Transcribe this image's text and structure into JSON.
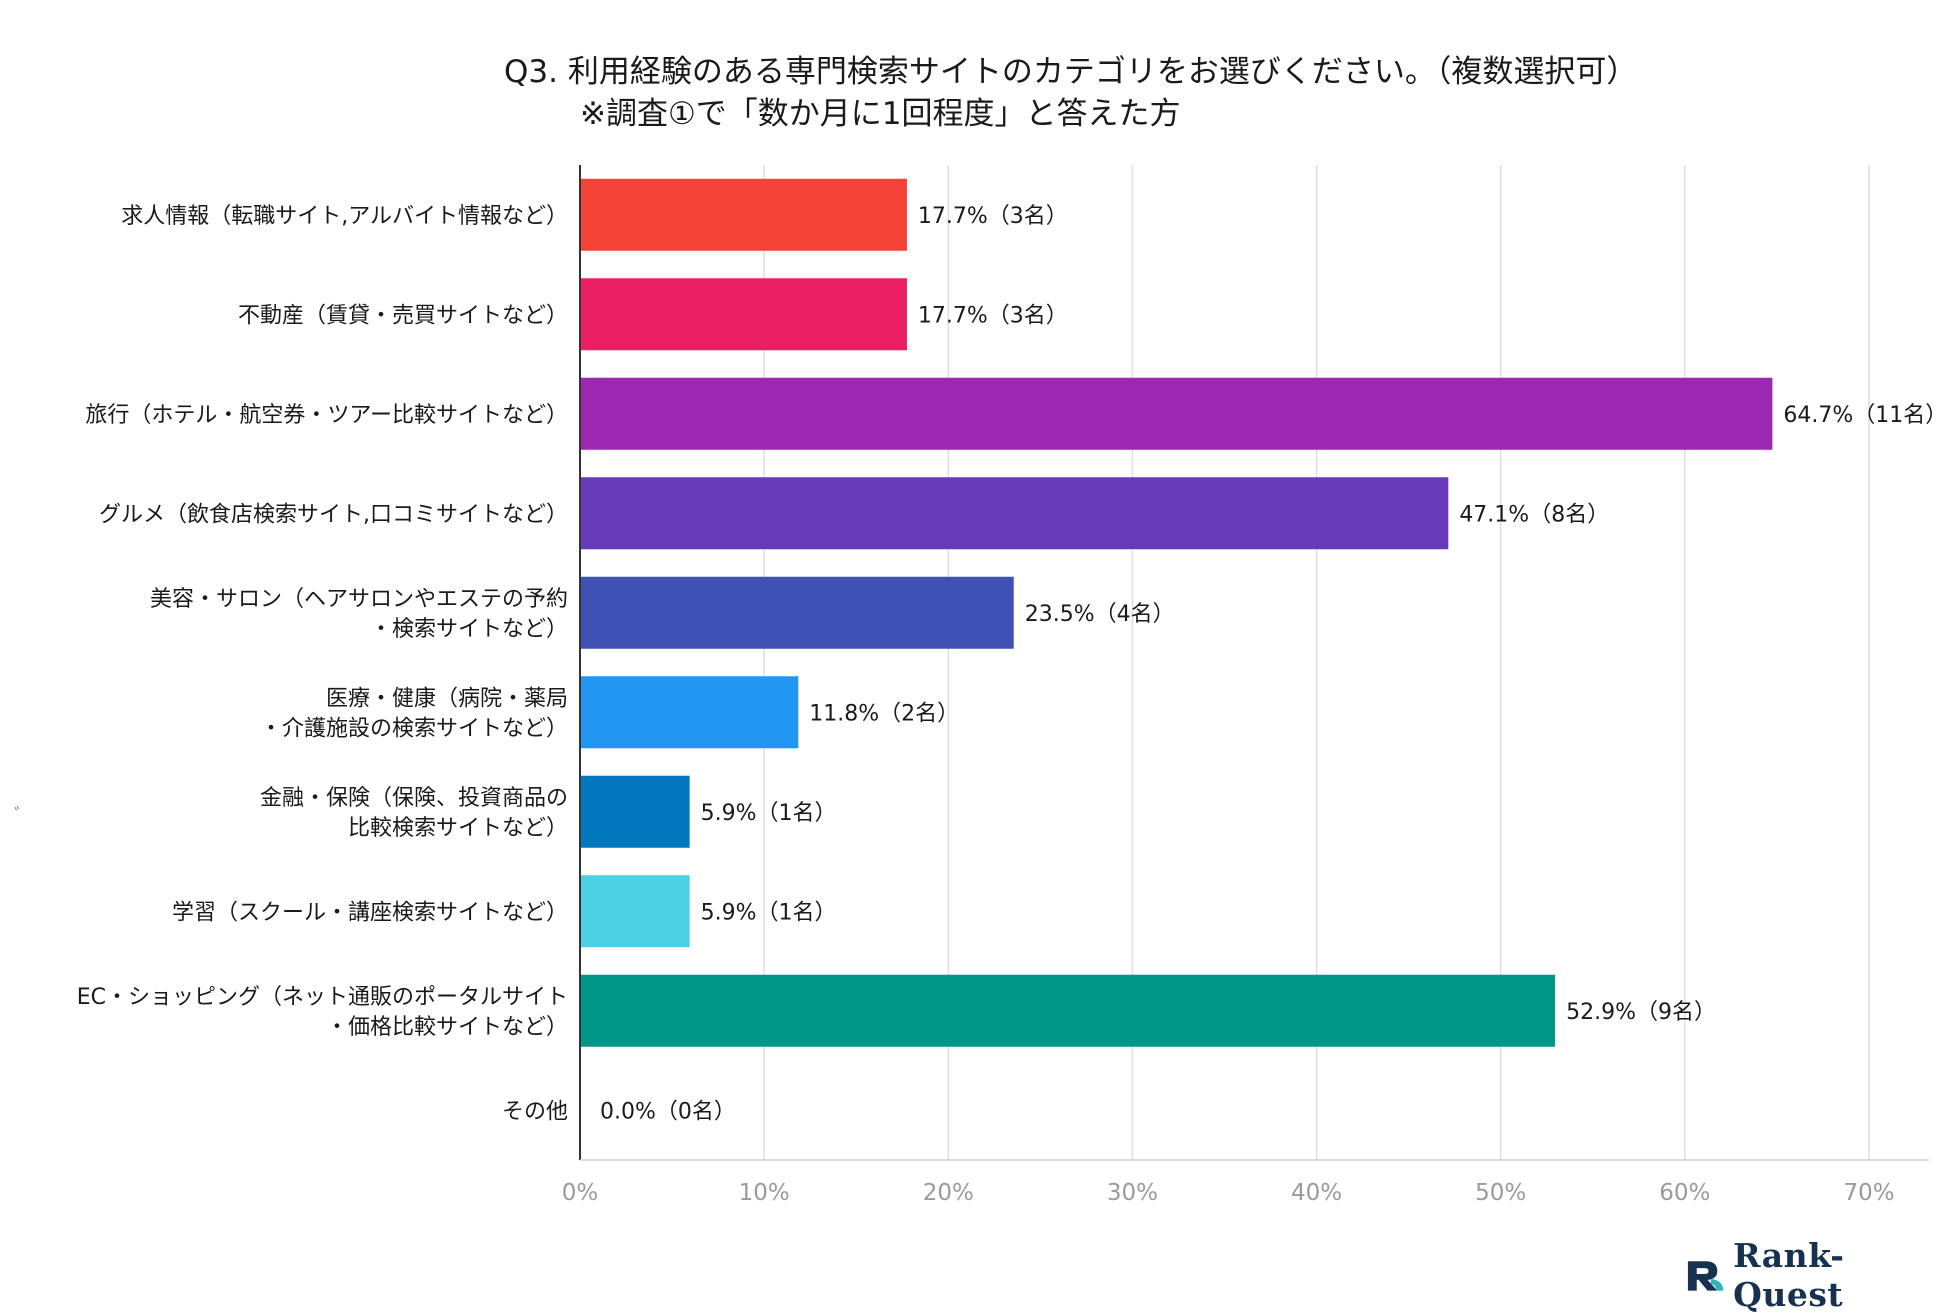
{
  "title": {
    "line1": "Q3. 利用経験のある専門検索サイトのカテゴリをお選びください。（複数選択可）",
    "line2": "※調査①で「数か月に1回程度」と答えた方"
  },
  "brand": {
    "name": "Rank-Quest",
    "color": "#17324f",
    "accent": "#2bb5b8"
  },
  "stray_mark": "ﾞ",
  "chart_data": {
    "type": "bar",
    "orientation": "horizontal",
    "title": "Q3. 利用経験のある専門検索サイトのカテゴリをお選びください。（複数選択可）",
    "subtitle": "※調査①で「数か月に1回程度」と答えた方",
    "xlabel": "",
    "ylabel": "",
    "xlim": [
      0,
      70
    ],
    "xticks": [
      0,
      10,
      20,
      30,
      40,
      50,
      60,
      70
    ],
    "tick_labels": [
      "0%",
      "10%",
      "20%",
      "30%",
      "40%",
      "50%",
      "60%",
      "70%"
    ],
    "grid": true,
    "legend": "none",
    "categories": [
      [
        "求人情報（転職サイト,アルバイト情報など）"
      ],
      [
        "不動産（賃貸・売買サイトなど）"
      ],
      [
        "旅行（ホテル・航空券・ツアー比較サイトなど）"
      ],
      [
        "グルメ（飲食店検索サイト,口コミサイトなど）"
      ],
      [
        "美容・サロン（ヘアサロンやエステの予約",
        "・検索サイトなど）"
      ],
      [
        "医療・健康（病院・薬局",
        "・介護施設の検索サイトなど）"
      ],
      [
        "金融・保険（保険、投資商品の",
        "比較検索サイトなど）"
      ],
      [
        "学習（スクール・講座検索サイトなど）"
      ],
      [
        "EC・ショッピング（ネット通販のポータルサイト",
        "・価格比較サイトなど）"
      ],
      [
        "その他"
      ]
    ],
    "values": [
      17.7,
      17.7,
      64.7,
      47.1,
      23.5,
      11.8,
      5.9,
      5.9,
      52.9,
      0.0
    ],
    "counts": [
      3,
      3,
      11,
      8,
      4,
      2,
      1,
      1,
      9,
      0
    ],
    "data_labels": [
      "17.7%（3名）",
      "17.7%（3名）",
      "64.7%（11名）",
      "47.1%（8名）",
      "23.5%（4名）",
      "11.8%（2名）",
      "5.9%（1名）",
      "5.9%（1名）",
      "52.9%（9名）",
      "0.0%（0名）"
    ],
    "colors": [
      "#f44336",
      "#e91e63",
      "#9c27b0",
      "#673ab7",
      "#3f51b5",
      "#2196f3",
      "#0277bd",
      "#4dd0e1",
      "#009688",
      "#9e9e9e"
    ]
  }
}
